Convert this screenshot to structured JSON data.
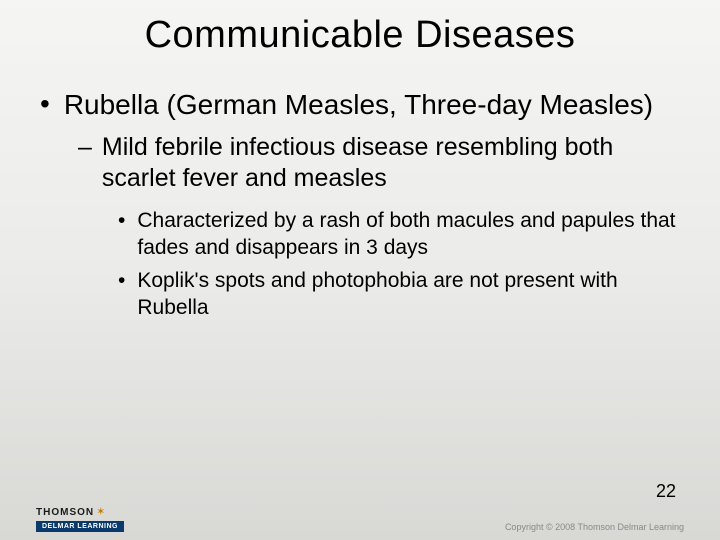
{
  "title": "Communicable Diseases",
  "bullets": {
    "level1_text": "Rubella (German Measles, Three-day Measles)",
    "level2_text": "Mild febrile infectious disease resembling both scarlet fever and measles",
    "level3_a": "Characterized by a rash of both macules and papules that fades and disappears in 3 days",
    "level3_b": "Koplik's spots and photophobia are not present with Rubella"
  },
  "page_number": "22",
  "footer": {
    "brand_top": "THOMSON",
    "brand_bottom": "DELMAR LEARNING",
    "copyright": "Copyright © 2008 Thomson Delmar Learning"
  },
  "colors": {
    "bg_top": "#f5f5f4",
    "bg_bottom": "#d8d8d5",
    "text": "#000000",
    "delmar_bg": "#0a3a6b",
    "copyright_color": "#888888"
  }
}
